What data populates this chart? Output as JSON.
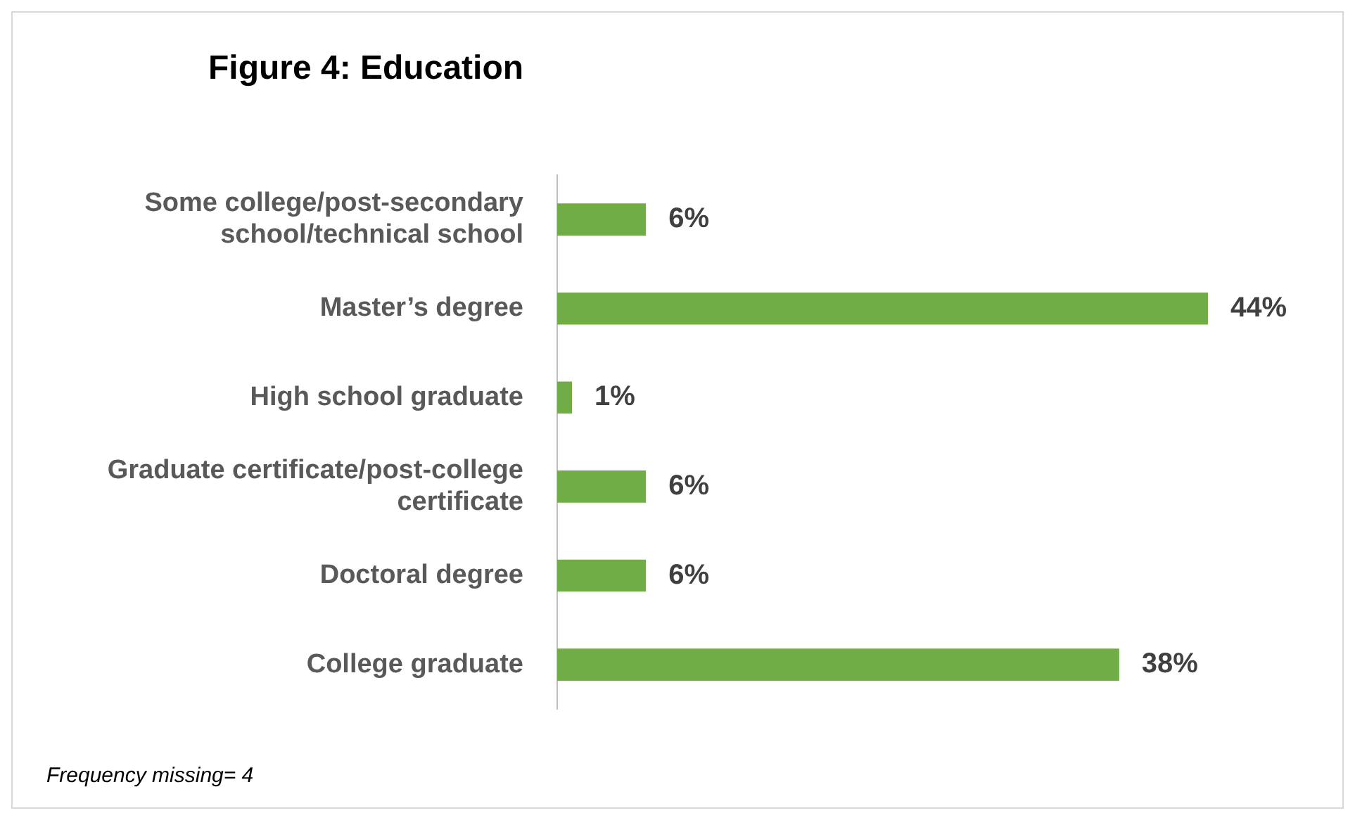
{
  "chart_data": {
    "type": "bar",
    "orientation": "horizontal",
    "title": "Figure 4: Education",
    "categories": [
      "Some college/post-secondary school/technical school",
      "Master’s degree",
      "High school graduate",
      "Graduate certificate/post-college certificate",
      "Doctoral degree",
      "College graduate"
    ],
    "values": [
      6,
      44,
      1,
      6,
      6,
      38
    ],
    "value_labels": [
      "6%",
      "44%",
      "1%",
      "6%",
      "6%",
      "38%"
    ],
    "color": "#70ad47",
    "annotations": [
      "Frequency missing= 4"
    ]
  }
}
